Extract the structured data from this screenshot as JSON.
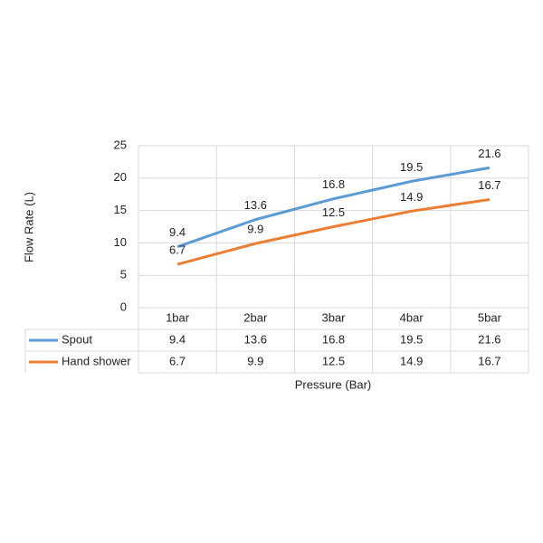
{
  "chart_data": {
    "type": "line",
    "x_label": "Pressure (Bar)",
    "y_label": "Flow Rate (L)",
    "categories": [
      "1bar",
      "2bar",
      "3bar",
      "4bar",
      "5bar"
    ],
    "series": [
      {
        "name": "Spout",
        "color": "#5b9bd5",
        "values": [
          9.4,
          13.6,
          16.8,
          19.5,
          21.6
        ]
      },
      {
        "name": "Hand shower",
        "color": "#ed7d31",
        "values": [
          6.7,
          9.9,
          12.5,
          14.9,
          16.7
        ]
      }
    ],
    "ylim": [
      0,
      25
    ],
    "yticks": [
      0,
      5,
      10,
      15,
      20,
      25
    ],
    "grid": true,
    "data_table": true,
    "data_labels": true
  }
}
